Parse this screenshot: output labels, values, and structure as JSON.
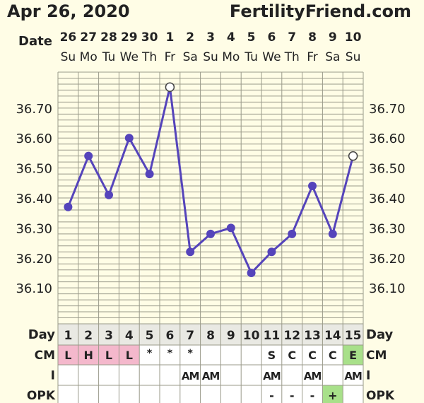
{
  "header": {
    "date": "Apr 26, 2020",
    "brand": "FertilityFriend.com"
  },
  "labels": {
    "date": "Date",
    "day": "Day",
    "cm": "CM",
    "i": "I",
    "opk": "OPK"
  },
  "colors": {
    "background": "#fffde6",
    "grid_line": "#9a9a8a",
    "temperature_line": "#5544bb",
    "cm_menstrual": "#f4b8cc",
    "cm_eggwhite": "#a8e08a",
    "opk_positive": "#a8e08a"
  },
  "chart_data": {
    "type": "line",
    "x": [
      "26",
      "27",
      "28",
      "29",
      "30",
      "1",
      "2",
      "3",
      "4",
      "5",
      "6",
      "7",
      "8",
      "9",
      "10"
    ],
    "weekdays": [
      "Su",
      "Mo",
      "Tu",
      "We",
      "Th",
      "Fr",
      "Sa",
      "Su",
      "Mo",
      "Tu",
      "We",
      "Th",
      "Fr",
      "Sa",
      "Su"
    ],
    "cycle_days": [
      "1",
      "2",
      "3",
      "4",
      "5",
      "6",
      "7",
      "8",
      "9",
      "10",
      "11",
      "12",
      "13",
      "14",
      "15"
    ],
    "series": [
      {
        "values": [
          36.37,
          36.54,
          36.41,
          36.6,
          36.48,
          36.77,
          36.22,
          36.28,
          36.3,
          36.15,
          36.22,
          36.28,
          36.44,
          36.28,
          36.54
        ],
        "open_markers": [
          false,
          false,
          false,
          false,
          false,
          true,
          false,
          false,
          false,
          false,
          false,
          false,
          false,
          false,
          true
        ]
      }
    ],
    "ylim": [
      35.98,
      36.82
    ],
    "y_ticks": [
      "36.10",
      "36.20",
      "36.30",
      "36.40",
      "36.50",
      "36.60",
      "36.70"
    ],
    "grid": true,
    "rows": {
      "cm": [
        "L",
        "H",
        "L",
        "L",
        "*",
        "*",
        "*",
        "",
        "",
        "",
        "S",
        "C",
        "C",
        "C",
        "E"
      ],
      "i": [
        "",
        "",
        "",
        "",
        "",
        "",
        "AM",
        "AM",
        "",
        "",
        "AM",
        "",
        "AM",
        "",
        "AM"
      ],
      "opk": [
        "",
        "",
        "",
        "",
        "",
        "",
        "",
        "",
        "",
        "",
        "-",
        "-",
        "-",
        "+",
        ""
      ]
    }
  }
}
